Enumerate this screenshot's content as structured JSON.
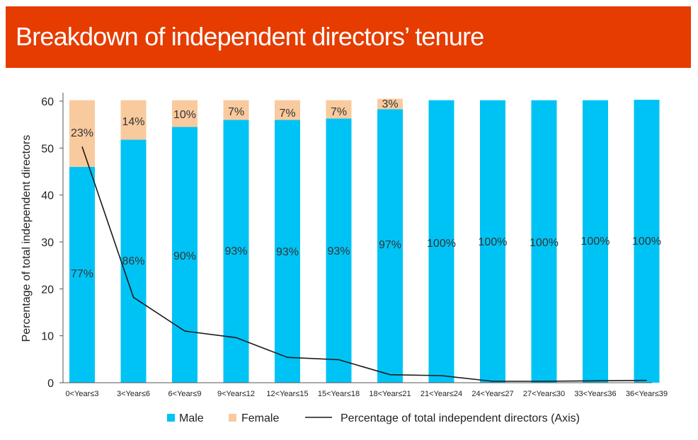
{
  "header": {
    "title": "Breakdown of independent directors’ tenure"
  },
  "colors": {
    "header_bg": "#e63c00",
    "male": "#00c3f5",
    "female": "#f9ca9e",
    "line": "#1a1a1a"
  },
  "chart_data": {
    "type": "bar",
    "stacked": true,
    "title": "Breakdown of independent directors’ tenure",
    "ylabel": "Percentage of total independent directors",
    "ylim": [
      0,
      60
    ],
    "yticks": [
      0,
      10,
      20,
      30,
      40,
      50,
      60
    ],
    "categories": [
      "0<Year≤3",
      "3<Year≤6",
      "6<Year≤9",
      "9<Year≤12",
      "12<Year≤15",
      "15<Year≤18",
      "18<Year≤21",
      "21<Year≤24",
      "24<Year≤27",
      "27<Year≤30",
      "33<Year≤36",
      "36<Year≤39"
    ],
    "series": [
      {
        "name": "Male",
        "type": "bar",
        "color": "#00c3f5",
        "values": [
          46,
          51.8,
          54.5,
          56,
          56,
          56.3,
          58.3,
          60.2,
          60.2,
          60.2,
          60.2,
          60.3
        ],
        "labels": [
          "77%",
          "86%",
          "90%",
          "93%",
          "93%",
          "93%",
          "97%",
          "100%",
          "100%",
          "100%",
          "100%",
          "100%"
        ]
      },
      {
        "name": "Female",
        "type": "bar",
        "color": "#f9ca9e",
        "values": [
          14.2,
          8.4,
          5.7,
          4.2,
          4.2,
          3.9,
          2.2,
          0,
          0,
          0,
          0,
          0
        ],
        "labels": [
          "23%",
          "14%",
          "10%",
          "7%",
          "7%",
          "7%",
          "3%",
          "",
          "",
          "",
          "",
          ""
        ]
      },
      {
        "name": "Percentage of total independent directors (Axis)",
        "type": "line",
        "color": "#1a1a1a",
        "values": [
          50.3,
          18.2,
          11.0,
          9.6,
          5.4,
          4.9,
          1.7,
          1.5,
          0.3,
          0.3,
          0.4,
          0.5
        ]
      }
    ],
    "legend": {
      "position": "bottom",
      "items": [
        "Male",
        "Female",
        "Percentage of total independent directors (Axis)"
      ]
    },
    "grid": false
  }
}
